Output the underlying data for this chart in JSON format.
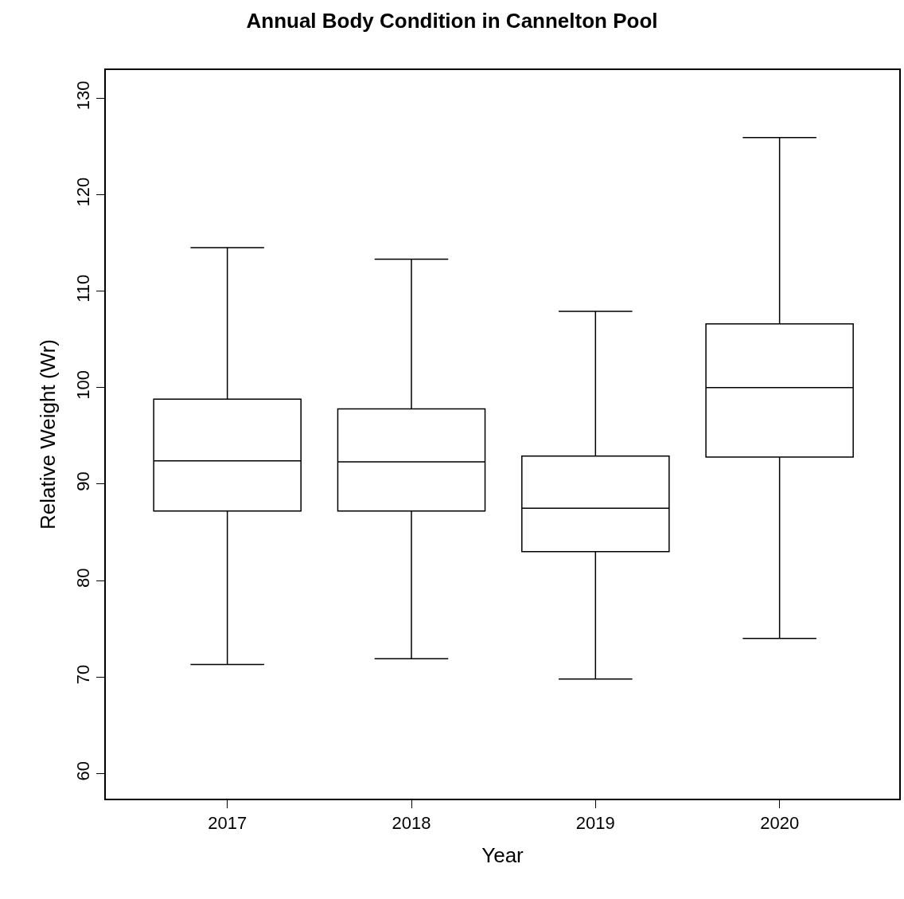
{
  "chart_data": {
    "type": "box",
    "title": "Annual Body Condition in Cannelton Pool",
    "xlabel": "Year",
    "ylabel": "Relative Weight (Wr)",
    "categories": [
      "2017",
      "2018",
      "2019",
      "2020"
    ],
    "boxes": [
      {
        "low": 71.3,
        "q1": 87.2,
        "median": 92.4,
        "q3": 98.8,
        "high": 114.5
      },
      {
        "low": 71.9,
        "q1": 87.2,
        "median": 92.3,
        "q3": 97.8,
        "high": 113.3
      },
      {
        "low": 69.8,
        "q1": 83.0,
        "median": 87.5,
        "q3": 92.9,
        "high": 107.9
      },
      {
        "low": 74.0,
        "q1": 92.8,
        "median": 100.0,
        "q3": 106.6,
        "high": 125.9
      }
    ],
    "color": "#000000",
    "ylim": [
      57.4,
      132.9
    ],
    "yticks": [
      60,
      70,
      80,
      90,
      100,
      110,
      120,
      130
    ],
    "legend": false
  }
}
